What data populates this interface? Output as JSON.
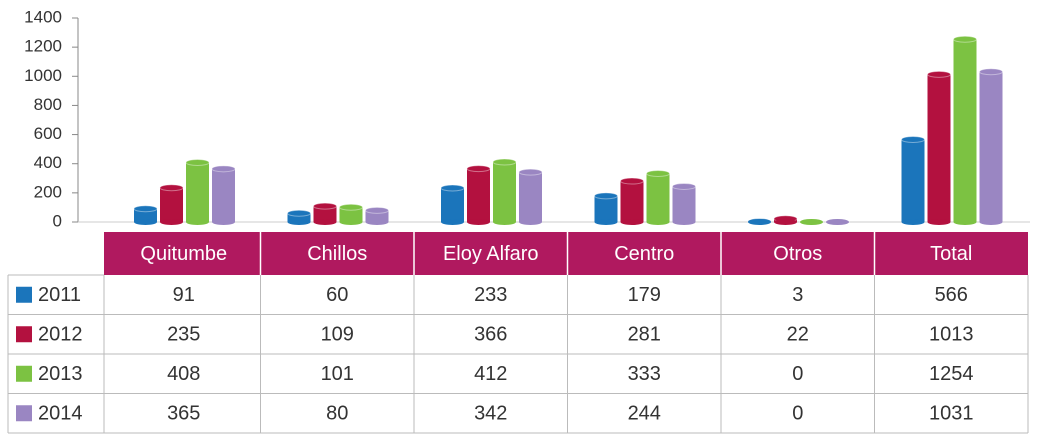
{
  "chart_data": {
    "type": "bar",
    "categories": [
      "Quitumbe",
      "Chillos",
      "Eloy Alfaro",
      "Centro",
      "Otros",
      "Total"
    ],
    "series": [
      {
        "name": "2011",
        "color": "#1b75bb",
        "values": [
          91,
          60,
          233,
          179,
          3,
          566
        ]
      },
      {
        "name": "2012",
        "color": "#b3113f",
        "values": [
          235,
          109,
          366,
          281,
          22,
          1013
        ]
      },
      {
        "name": "2013",
        "color": "#7cc242",
        "values": [
          408,
          101,
          412,
          333,
          0,
          1254
        ]
      },
      {
        "name": "2014",
        "color": "#9a86c2",
        "values": [
          365,
          80,
          342,
          244,
          0,
          1031
        ]
      }
    ],
    "ylim": [
      0,
      1400
    ],
    "yticks": [
      0,
      200,
      400,
      600,
      800,
      1000,
      1200,
      1400
    ],
    "header_color": "#b0195f"
  }
}
